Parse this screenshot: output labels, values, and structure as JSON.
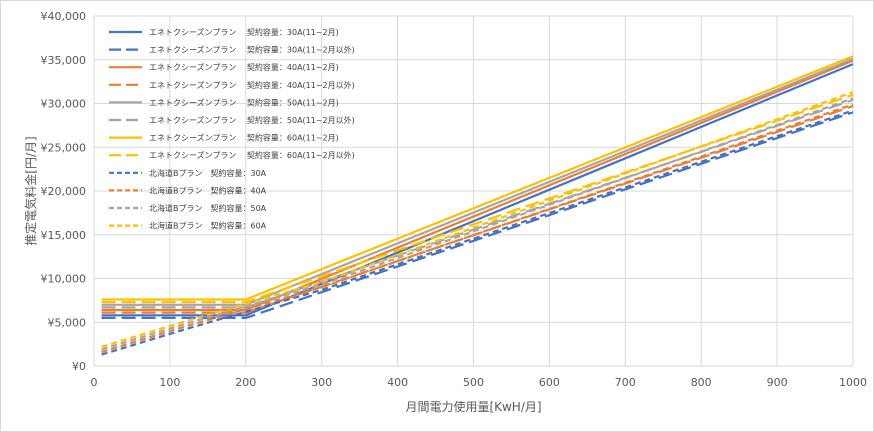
{
  "chart_data": {
    "type": "line",
    "xlabel": "月間電力使用量[KwH/月]",
    "ylabel": "推定電気料金[円/月]",
    "xlim": [
      0,
      1000
    ],
    "ylim": [
      0,
      40000
    ],
    "x_ticks": [
      "0",
      "100",
      "200",
      "300",
      "400",
      "500",
      "600",
      "700",
      "800",
      "900",
      "1000"
    ],
    "y_ticks": [
      "¥0",
      "¥5,000",
      "¥10,000",
      "¥15,000",
      "¥20,000",
      "¥25,000",
      "¥30,000",
      "¥35,000",
      "¥40,000"
    ],
    "grid": true,
    "legend_position": "top-left",
    "series": [
      {
        "name": "エネトクシーズンプラン　 契約容量：30A(11~2月)",
        "color": "#4472c4",
        "style": "solid",
        "x": [
          10,
          200,
          1000
        ],
        "y": [
          5800,
          5800,
          34500
        ]
      },
      {
        "name": "エネトクシーズンプラン　 契約容量：30A(11~2月以外)",
        "color": "#4472c4",
        "style": "longdash",
        "x": [
          10,
          200,
          1000
        ],
        "y": [
          5500,
          5500,
          29000
        ]
      },
      {
        "name": "エネトクシーズンプラン　 契約容量：40A(11~2月)",
        "color": "#ed7d31",
        "style": "solid",
        "x": [
          10,
          200,
          1000
        ],
        "y": [
          6400,
          6400,
          34900
        ]
      },
      {
        "name": "エネトクシーズンプラン　 契約容量：40A(11~2月以外)",
        "color": "#ed7d31",
        "style": "longdash",
        "x": [
          10,
          200,
          1000
        ],
        "y": [
          6100,
          6100,
          29700
        ]
      },
      {
        "name": "エネトクシーズンプラン　 契約容量：50A(11~2月)",
        "color": "#a5a5a5",
        "style": "solid",
        "x": [
          10,
          200,
          1000
        ],
        "y": [
          7000,
          7000,
          35100
        ]
      },
      {
        "name": "エネトクシーズンプラン　 契約容量：50A(11~2月以外)",
        "color": "#a5a5a5",
        "style": "longdash",
        "x": [
          10,
          200,
          1000
        ],
        "y": [
          6700,
          6700,
          30400
        ]
      },
      {
        "name": "エネトクシーズンプラン　 契約容量：60A(11~2月)",
        "color": "#ffc000",
        "style": "solid",
        "x": [
          10,
          200,
          1000
        ],
        "y": [
          7600,
          7600,
          35400
        ]
      },
      {
        "name": "エネトクシーズンプラン　 契約容量：60A(11~2月以外)",
        "color": "#ffc000",
        "style": "longdash",
        "x": [
          10,
          200,
          1000
        ],
        "y": [
          7300,
          7300,
          31000
        ]
      },
      {
        "name": "北海道Bプラン　契約容量：30A",
        "color": "#4472c4",
        "style": "shortdash",
        "x": [
          10,
          120,
          300,
          1000
        ],
        "y": [
          1300,
          4200,
          8700,
          29200
        ]
      },
      {
        "name": "北海道Bプラン　契約容量：40A",
        "color": "#ed7d31",
        "style": "shortdash",
        "x": [
          10,
          120,
          300,
          1000
        ],
        "y": [
          1600,
          4500,
          9000,
          29900
        ]
      },
      {
        "name": "北海道Bプラン　契約容量：50A",
        "color": "#a5a5a5",
        "style": "shortdash",
        "x": [
          10,
          120,
          300,
          1000
        ],
        "y": [
          1900,
          4800,
          9300,
          30600
        ]
      },
      {
        "name": "北海道Bプラン　契約容量：60A",
        "color": "#ffc000",
        "style": "shortdash",
        "x": [
          10,
          120,
          300,
          1000
        ],
        "y": [
          2200,
          5100,
          9600,
          31300
        ]
      }
    ]
  }
}
